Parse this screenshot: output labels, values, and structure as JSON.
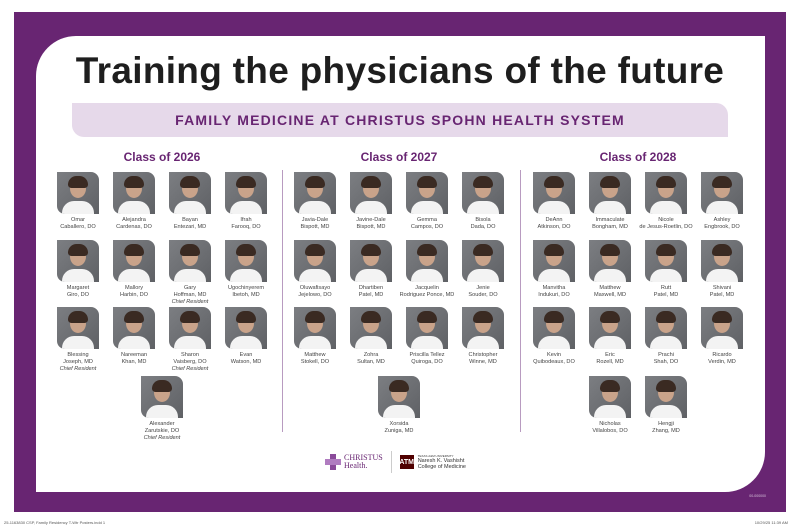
{
  "title": "Training the physicians of the future",
  "subtitle": "FAMILY MEDICINE AT CHRISTUS SPOHN HEALTH SYSTEM",
  "colors": {
    "brand_purple": "#682572",
    "band": "#e6d9ea"
  },
  "classes": [
    {
      "heading": "Class of 2026",
      "residents": [
        {
          "name": "Omar",
          "surname": "Caballero, DO"
        },
        {
          "name": "Alejandra",
          "surname": "Cardenas, DO"
        },
        {
          "name": "Bayan",
          "surname": "Entezari, MD"
        },
        {
          "name": "Ifrah",
          "surname": "Farooq, DO"
        },
        {
          "name": "Margaret",
          "surname": "Giro, DO"
        },
        {
          "name": "Mallory",
          "surname": "Harbin, DO"
        },
        {
          "name": "Gary",
          "surname": "Hoffman, MD",
          "role": "Chief Resident"
        },
        {
          "name": "Ugochinyerem",
          "surname": "Ibetoh, MD"
        },
        {
          "name": "Blessing",
          "surname": "Joseph, MD",
          "role": "Chief Resident"
        },
        {
          "name": "Nareeman",
          "surname": "Khan, MD"
        },
        {
          "name": "Sharon",
          "surname": "Vaisberg, DO",
          "role": "Chief Resident"
        },
        {
          "name": "Evan",
          "surname": "Watson, MD"
        },
        {
          "name": "Alexander",
          "surname": "Zarutskie, DO",
          "role": "Chief Resident"
        }
      ]
    },
    {
      "heading": "Class of 2027",
      "residents": [
        {
          "name": "Javia-Dale",
          "surname": "Bispott, MD"
        },
        {
          "name": "Javine-Dale",
          "surname": "Bispott, MD"
        },
        {
          "name": "Gemma",
          "surname": "Campos, DO"
        },
        {
          "name": "Bisola",
          "surname": "Dada, DO"
        },
        {
          "name": "Oluwafisayo",
          "surname": "Jejelowo, DO"
        },
        {
          "name": "Dhartiben",
          "surname": "Patel, MD"
        },
        {
          "name": "Jacquelin",
          "surname": "Rodriguez Ponce, MD"
        },
        {
          "name": "Jenie",
          "surname": "Souder, DO"
        },
        {
          "name": "Matthew",
          "surname": "Stokell, DO"
        },
        {
          "name": "Zohra",
          "surname": "Sultan, MD"
        },
        {
          "name": "Priscilla Tellez",
          "surname": "Quiroga, DO"
        },
        {
          "name": "Christopher",
          "surname": "Winne, MD"
        },
        {
          "name": "Xorsida",
          "surname": "Zuniga, MD"
        }
      ]
    },
    {
      "heading": "Class of 2028",
      "residents": [
        {
          "name": "DeAnn",
          "surname": "Atkinson, DO"
        },
        {
          "name": "Immaculate",
          "surname": "Bongham, MD"
        },
        {
          "name": "Nicole",
          "surname": "de Jesus-Roetlin, DO"
        },
        {
          "name": "Ashley",
          "surname": "Engbrook, DO"
        },
        {
          "name": "Manvitha",
          "surname": "Indukuri, DO"
        },
        {
          "name": "Matthew",
          "surname": "Maxwell, MD"
        },
        {
          "name": "Rutt",
          "surname": "Patel, MD"
        },
        {
          "name": "Shivani",
          "surname": "Patel, MD"
        },
        {
          "name": "Kevin",
          "surname": "Quibodeaux, DO"
        },
        {
          "name": "Eric",
          "surname": "Rozell, MD"
        },
        {
          "name": "Prachi",
          "surname": "Shah, DO"
        },
        {
          "name": "Ricardo",
          "surname": "Verdin, MD"
        },
        {
          "name": "Nicholas",
          "surname": "Villalobos, DO"
        },
        {
          "name": "Hengji",
          "surname": "Zhang, MD"
        }
      ]
    }
  ],
  "logos": {
    "christus_line1": "CHRISTUS",
    "christus_line2": "Health.",
    "tamu_mark": "ATM",
    "tamu_small": "TEXAS A&M UNIVERSITY",
    "tamu_line1": "Naresh K. Vashisht",
    "tamu_line2": "College of Medicine"
  },
  "print_code": "00-000000",
  "slug_left": "25-1163830 CSP, Family Residency T-Wtr Posters.indd   1",
  "slug_right": "10/29/25   11:39 AM"
}
